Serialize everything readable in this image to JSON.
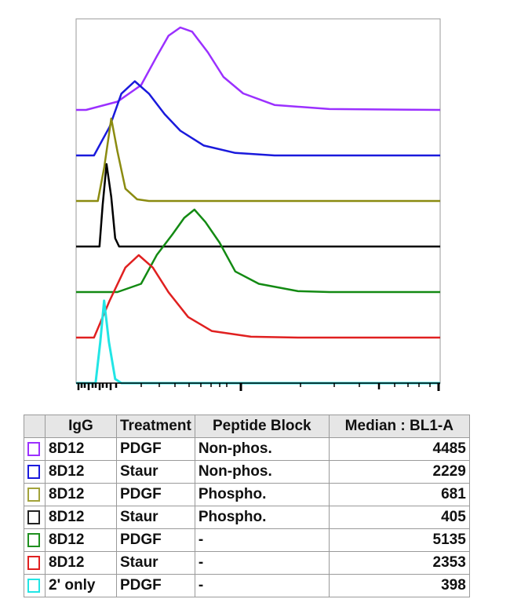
{
  "chart_data": {
    "type": "line",
    "subtype": "offset histogram overlay",
    "xscale": "log",
    "xlim": [
      1460,
      102800
    ],
    "x_tick_labels": [],
    "xlabel": "",
    "ylabel": "",
    "grid": false,
    "legend": "table-below",
    "series": [
      {
        "color": "#9b30ff",
        "points": [
          [
            1641,
            0
          ],
          [
            2368,
            0.1
          ],
          [
            3119,
            0.3
          ],
          [
            3748,
            0.65
          ],
          [
            4301,
            0.9
          ],
          [
            4935,
            1.0
          ],
          [
            5662,
            0.95
          ],
          [
            6802,
            0.7
          ],
          [
            8172,
            0.4
          ],
          [
            10280,
            0.2
          ],
          [
            14840,
            0.06
          ],
          [
            28190,
            0.01
          ],
          [
            102800,
            0
          ]
        ]
      },
      {
        "color": "#1a1adc",
        "points": [
          [
            1799,
            0
          ],
          [
            2161,
            0.35
          ],
          [
            2479,
            0.75
          ],
          [
            2899,
            0.9
          ],
          [
            3420,
            0.75
          ],
          [
            4109,
            0.5
          ],
          [
            4935,
            0.3
          ],
          [
            6497,
            0.12
          ],
          [
            9378,
            0.03
          ],
          [
            14840,
            0
          ],
          [
            102800,
            0
          ]
        ]
      },
      {
        "color": "#8b8b10",
        "points": [
          [
            1883,
            0
          ],
          [
            2026,
            0.4
          ],
          [
            2201,
            1.0
          ],
          [
            2368,
            0.6
          ],
          [
            2596,
            0.15
          ],
          [
            2980,
            0.02
          ],
          [
            3420,
            0
          ],
          [
            102800,
            0
          ]
        ]
      },
      {
        "color": "#000000",
        "points": [
          [
            1918,
            0
          ],
          [
            1990,
            0.5
          ],
          [
            2083,
            1.0
          ],
          [
            2201,
            0.6
          ],
          [
            2304,
            0.1
          ],
          [
            2412,
            0
          ],
          [
            102800,
            0
          ]
        ]
      },
      {
        "color": "#138a13",
        "points": [
          [
            2368,
            0
          ],
          [
            3119,
            0.1
          ],
          [
            3748,
            0.45
          ],
          [
            4503,
            0.7
          ],
          [
            5167,
            0.9
          ],
          [
            5821,
            1.0
          ],
          [
            6618,
            0.85
          ],
          [
            7806,
            0.6
          ],
          [
            9378,
            0.25
          ],
          [
            12350,
            0.1
          ],
          [
            19540,
            0.01
          ],
          [
            28190,
            0
          ],
          [
            102800,
            0
          ]
        ]
      },
      {
        "color": "#e02020",
        "points": [
          [
            1799,
            0
          ],
          [
            2161,
            0.45
          ],
          [
            2596,
            0.85
          ],
          [
            3036,
            1.0
          ],
          [
            3580,
            0.85
          ],
          [
            4301,
            0.55
          ],
          [
            5409,
            0.25
          ],
          [
            7121,
            0.08
          ],
          [
            11270,
            0.01
          ],
          [
            19540,
            0
          ],
          [
            102800,
            0
          ]
        ]
      },
      {
        "color": "#22e5e5",
        "points": [
          [
            1832,
            0
          ],
          [
            1936,
            0.5
          ],
          [
            2026,
            1.0
          ],
          [
            2141,
            0.5
          ],
          [
            2304,
            0.05
          ],
          [
            2479,
            0
          ],
          [
            102800,
            0
          ]
        ]
      }
    ]
  },
  "table": {
    "headers": [
      "",
      "IgG",
      "Treatment",
      "Peptide Block",
      "Median : BL1-A"
    ],
    "rows": [
      {
        "color": "#9b30ff",
        "igg": "8D12",
        "treatment": "PDGF",
        "peptide": "Non-phos.",
        "median": "4485"
      },
      {
        "color": "#1a1adc",
        "igg": "8D12",
        "treatment": "Staur",
        "peptide": "Non-phos.",
        "median": "2229"
      },
      {
        "color": "#a3a33a",
        "igg": "8D12",
        "treatment": "PDGF",
        "peptide": "Phospho.",
        "median": "681"
      },
      {
        "color": "#222222",
        "igg": "8D12",
        "treatment": "Staur",
        "peptide": "Phospho.",
        "median": "405"
      },
      {
        "color": "#1f8f1f",
        "igg": "8D12",
        "treatment": "PDGF",
        "peptide": "-",
        "median": "5135"
      },
      {
        "color": "#e02020",
        "igg": "8D12",
        "treatment": "Staur",
        "peptide": "-",
        "median": "2353"
      },
      {
        "color": "#22e5e5",
        "igg": "2' only",
        "treatment": "PDGF",
        "peptide": "-",
        "median": "398"
      }
    ]
  }
}
